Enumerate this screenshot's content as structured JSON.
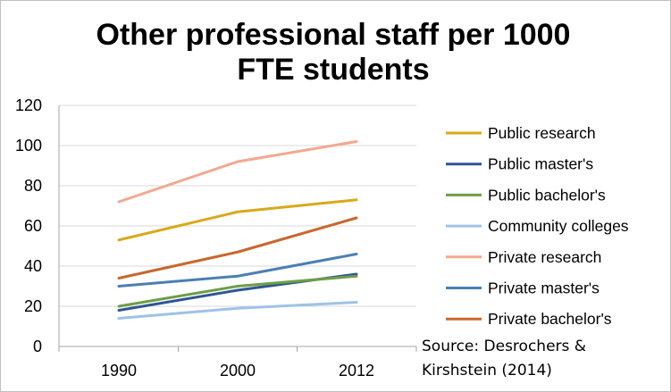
{
  "chart_data": {
    "type": "line",
    "title_lines": [
      "Other professional  staff per 1000",
      "FTE students"
    ],
    "xlabel": "",
    "ylabel": "",
    "categories": [
      "1990",
      "2000",
      "2012"
    ],
    "ylim": [
      0,
      120
    ],
    "yticks": [
      0,
      20,
      40,
      60,
      80,
      100,
      120
    ],
    "grid": true,
    "legend_position": "right",
    "series": [
      {
        "name": "Public research",
        "color": "#D9A91A",
        "values": [
          53,
          67,
          73
        ]
      },
      {
        "name": "Public master's",
        "color": "#2E5597",
        "values": [
          18,
          28,
          36
        ]
      },
      {
        "name": "Public bachelor's",
        "color": "#6E9E45",
        "values": [
          20,
          30,
          35
        ]
      },
      {
        "name": "Community colleges",
        "color": "#9DC3E6",
        "values": [
          14,
          19,
          22
        ]
      },
      {
        "name": "Private research",
        "color": "#F2A98E",
        "values": [
          72,
          92,
          102
        ]
      },
      {
        "name": "Private master's",
        "color": "#4A7FB5",
        "values": [
          30,
          35,
          46
        ]
      },
      {
        "name": "Private bachelor's",
        "color": "#C9672C",
        "values": [
          34,
          47,
          64
        ]
      }
    ],
    "source_lines": [
      "Source: Desrochers &",
      "Kirshstein (2014)"
    ]
  }
}
